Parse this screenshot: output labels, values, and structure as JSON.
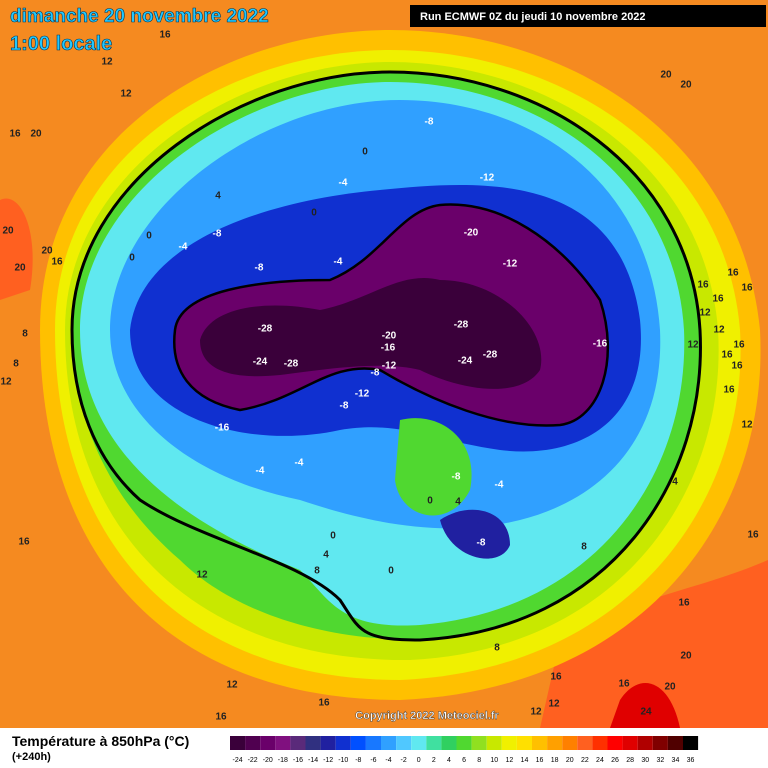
{
  "header": {
    "title": "dimanche 20 novembre 2022",
    "subtitle": "1:00 locale",
    "run": "Run ECMWF 0Z du jeudi 10 novembre 2022"
  },
  "map": {
    "contour_labels": [
      16,
      12,
      12,
      16,
      20,
      20,
      20,
      20,
      16,
      8,
      8,
      12,
      4,
      0,
      -4,
      -8,
      0,
      -8,
      0,
      -4,
      0,
      -4,
      -8,
      -12,
      -20,
      -12,
      -28,
      -24,
      -28,
      -28,
      -20,
      -16,
      -24,
      -28,
      -8,
      -12,
      -12,
      -8,
      -16,
      -16,
      -4,
      -4,
      -8,
      -4,
      4,
      0,
      -8,
      0,
      4,
      8,
      0,
      8,
      12,
      16,
      16,
      16,
      20,
      16,
      20,
      24,
      12,
      16,
      16,
      12,
      12,
      16,
      8,
      20,
      20,
      12,
      12,
      16,
      16,
      16,
      16,
      12,
      16,
      16,
      16,
      16,
      12,
      4
    ]
  },
  "copyright": "Copyright 2022 Meteociel.fr",
  "legend": {
    "title": "Température à 850hPa (°C)",
    "lead": "(+240h)",
    "scale": [
      -24,
      -22,
      -20,
      -18,
      -16,
      -14,
      -12,
      -10,
      -8,
      -6,
      -4,
      -2,
      0,
      2,
      4,
      6,
      8,
      10,
      12,
      14,
      16,
      18,
      20,
      22,
      24,
      26,
      28,
      30,
      32,
      34,
      36
    ],
    "colors": [
      "#3a003a",
      "#500050",
      "#6a006a",
      "#80107f",
      "#5a2a7a",
      "#303080",
      "#2020a0",
      "#1030d0",
      "#0050ff",
      "#1878ff",
      "#30a0ff",
      "#50c8ff",
      "#60e8f0",
      "#40e0a0",
      "#30d060",
      "#50d830",
      "#90e020",
      "#c8e800",
      "#f0f000",
      "#ffe000",
      "#ffc000",
      "#ffa000",
      "#ff8000",
      "#ff6020",
      "#ff3000",
      "#ff0000",
      "#e00000",
      "#b00000",
      "#800000",
      "#500000",
      "#000000"
    ]
  }
}
